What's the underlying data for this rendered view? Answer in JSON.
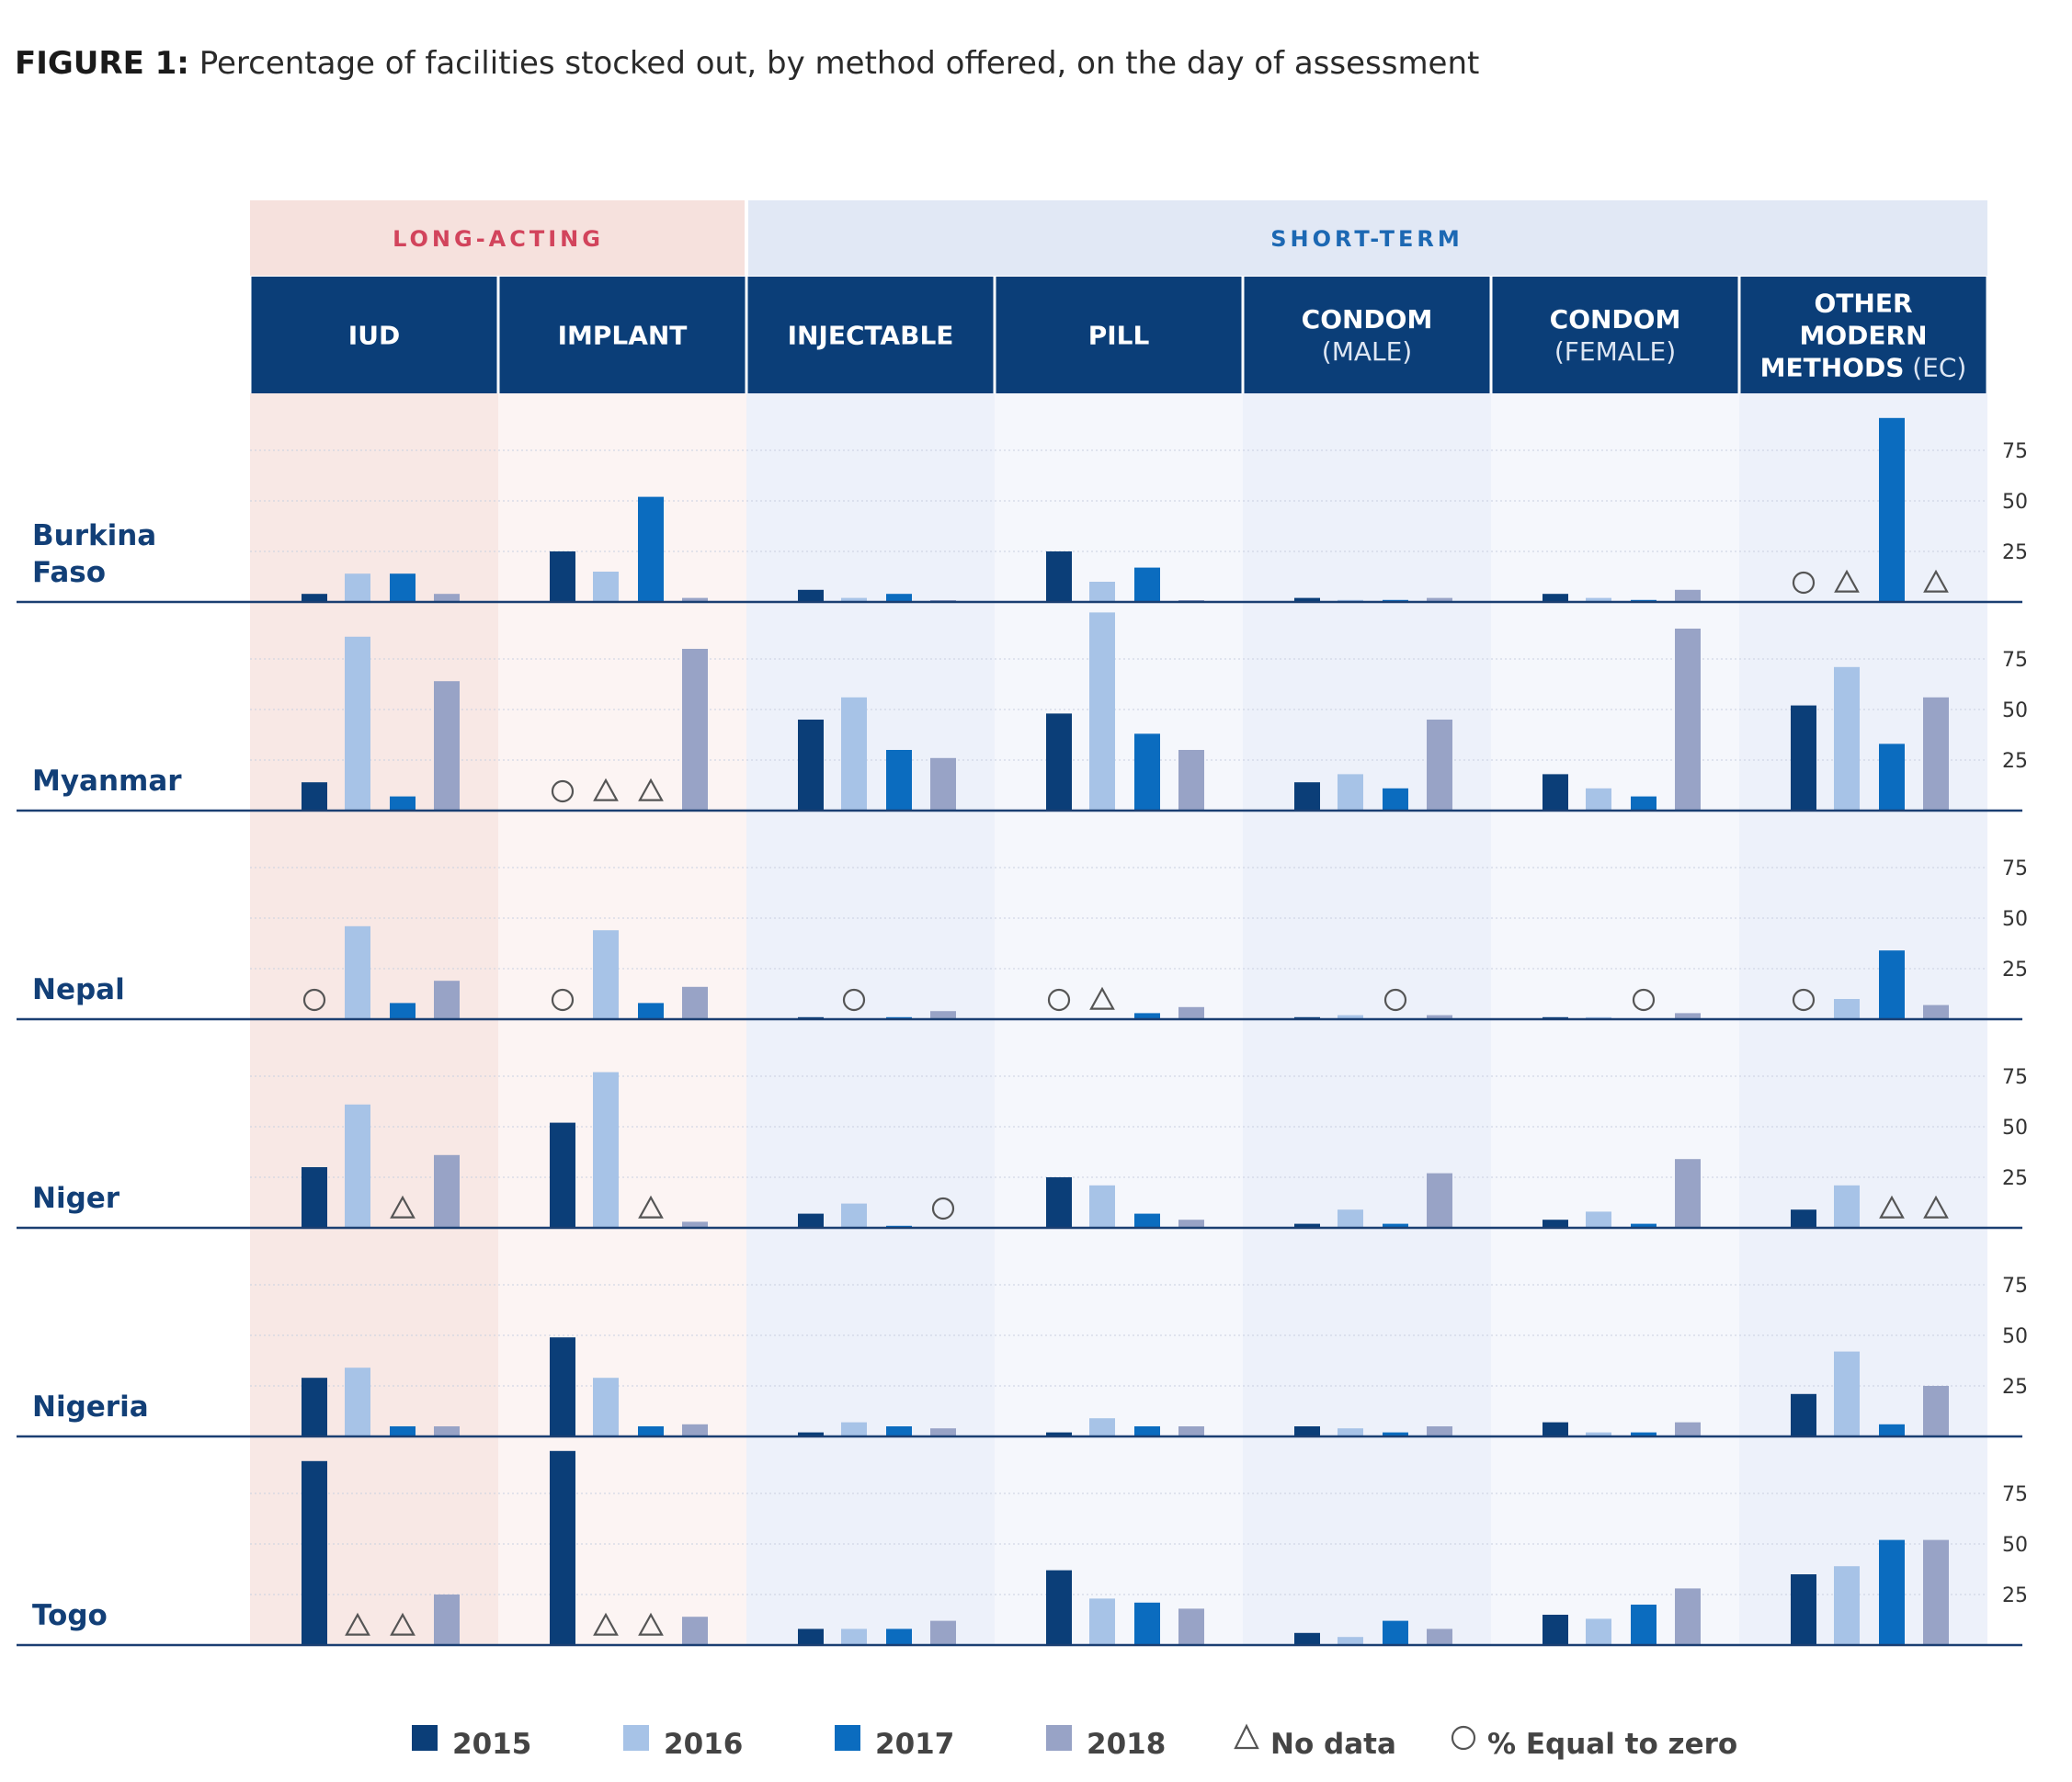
{
  "title": {
    "prefix": "FIGURE 1:",
    "text": "Percentage of facilities stocked out, by method offered, on the day of assessment"
  },
  "colors": {
    "2015": "#0b3e78",
    "2016": "#a7c3e7",
    "2017": "#0b6cbf",
    "2018": "#98a3c6",
    "header_bg": "#0b3e78",
    "long_acting_header": "#f6e1dd",
    "short_term_header": "#e1e8f5",
    "long_acting_col_a": "#f8e8e5",
    "long_acting_col_b": "#fcf4f3",
    "short_term_col_a": "#edf1fa",
    "short_term_col_b": "#f5f7fc",
    "long_acting_text": "#d2445c",
    "short_term_text": "#1c68b3",
    "baseline": "#1b3f72"
  },
  "groups": [
    {
      "label": "LONG-ACTING",
      "methods": 2
    },
    {
      "label": "SHORT-TERM",
      "methods": 5
    }
  ],
  "methods": [
    {
      "lines": [
        {
          "main": "IUD",
          "sub": ""
        }
      ]
    },
    {
      "lines": [
        {
          "main": "IMPLANT",
          "sub": ""
        }
      ]
    },
    {
      "lines": [
        {
          "main": "INJECTABLE",
          "sub": ""
        }
      ]
    },
    {
      "lines": [
        {
          "main": "PILL",
          "sub": ""
        }
      ]
    },
    {
      "lines": [
        {
          "main": "CONDOM",
          "sub": ""
        },
        {
          "main": "",
          "sub": "(MALE)"
        }
      ]
    },
    {
      "lines": [
        {
          "main": "CONDOM",
          "sub": ""
        },
        {
          "main": "",
          "sub": "(FEMALE)"
        }
      ]
    },
    {
      "lines": [
        {
          "main": "OTHER",
          "sub": ""
        },
        {
          "main": "MODERN",
          "sub": ""
        },
        {
          "main": "METHODS",
          "sub": " (EC)"
        }
      ]
    }
  ],
  "legend": [
    {
      "type": "bar",
      "key": "2015",
      "label": "2015"
    },
    {
      "type": "bar",
      "key": "2016",
      "label": "2016"
    },
    {
      "type": "bar",
      "key": "2017",
      "label": "2017"
    },
    {
      "type": "bar",
      "key": "2018",
      "label": "2018"
    },
    {
      "type": "triangle",
      "label": "No data"
    },
    {
      "type": "circle",
      "label": "% Equal to zero"
    }
  ],
  "chart_data": {
    "type": "bar",
    "title": "FIGURE 1: Percentage of facilities stocked out, by method offered, on the day of assessment",
    "series_names": [
      "2015",
      "2016",
      "2017",
      "2018"
    ],
    "ylim": [
      0,
      100
    ],
    "yticks": [
      25,
      50,
      75
    ],
    "marker_legend": {
      "no_data": "No data",
      "zero": "% Equal to zero"
    },
    "countries": [
      {
        "name": [
          "Burkina",
          "Faso"
        ],
        "methods": [
          [
            4,
            14,
            14,
            4
          ],
          [
            25,
            15,
            52,
            2
          ],
          [
            6,
            2,
            4,
            0
          ],
          [
            25,
            10,
            17,
            0
          ],
          [
            2,
            1,
            1,
            2
          ],
          [
            4,
            2,
            1,
            6
          ],
          [
            "Z",
            "N",
            91,
            "N"
          ]
        ]
      },
      {
        "name": [
          "Myanmar"
        ],
        "methods": [
          [
            14,
            86,
            7,
            64
          ],
          [
            "Z",
            "N",
            "N",
            80
          ],
          [
            45,
            56,
            30,
            26
          ],
          [
            48,
            98,
            38,
            30
          ],
          [
            14,
            18,
            11,
            45
          ],
          [
            18,
            11,
            7,
            90
          ],
          [
            52,
            71,
            33,
            56
          ]
        ]
      },
      {
        "name": [
          "Nepal"
        ],
        "methods": [
          [
            "Z",
            46,
            8,
            19
          ],
          [
            "Z",
            44,
            8,
            16
          ],
          [
            1,
            "Z",
            1,
            4
          ],
          [
            "Z",
            "N",
            3,
            6
          ],
          [
            1,
            2,
            "Z",
            2
          ],
          [
            1,
            1,
            "Z",
            3
          ],
          [
            "Z",
            10,
            34,
            7
          ]
        ]
      },
      {
        "name": [
          "Niger"
        ],
        "methods": [
          [
            30,
            61,
            "N",
            36
          ],
          [
            52,
            77,
            "N",
            3
          ],
          [
            7,
            12,
            1,
            "Z"
          ],
          [
            25,
            21,
            7,
            4
          ],
          [
            2,
            9,
            2,
            27
          ],
          [
            4,
            8,
            2,
            34
          ],
          [
            9,
            21,
            "N",
            "N"
          ]
        ]
      },
      {
        "name": [
          "Nigeria"
        ],
        "methods": [
          [
            29,
            34,
            5,
            5
          ],
          [
            49,
            29,
            5,
            6
          ],
          [
            2,
            7,
            5,
            4
          ],
          [
            2,
            9,
            5,
            5
          ],
          [
            5,
            4,
            2,
            5
          ],
          [
            7,
            2,
            2,
            7
          ],
          [
            21,
            42,
            6,
            25
          ]
        ]
      },
      {
        "name": [
          "Togo"
        ],
        "methods": [
          [
            91,
            "N",
            "N",
            25
          ],
          [
            96,
            "N",
            "N",
            14
          ],
          [
            8,
            8,
            8,
            12
          ],
          [
            37,
            23,
            21,
            18
          ],
          [
            6,
            4,
            12,
            8
          ],
          [
            15,
            13,
            20,
            28
          ],
          [
            35,
            39,
            52,
            52
          ]
        ]
      }
    ]
  }
}
